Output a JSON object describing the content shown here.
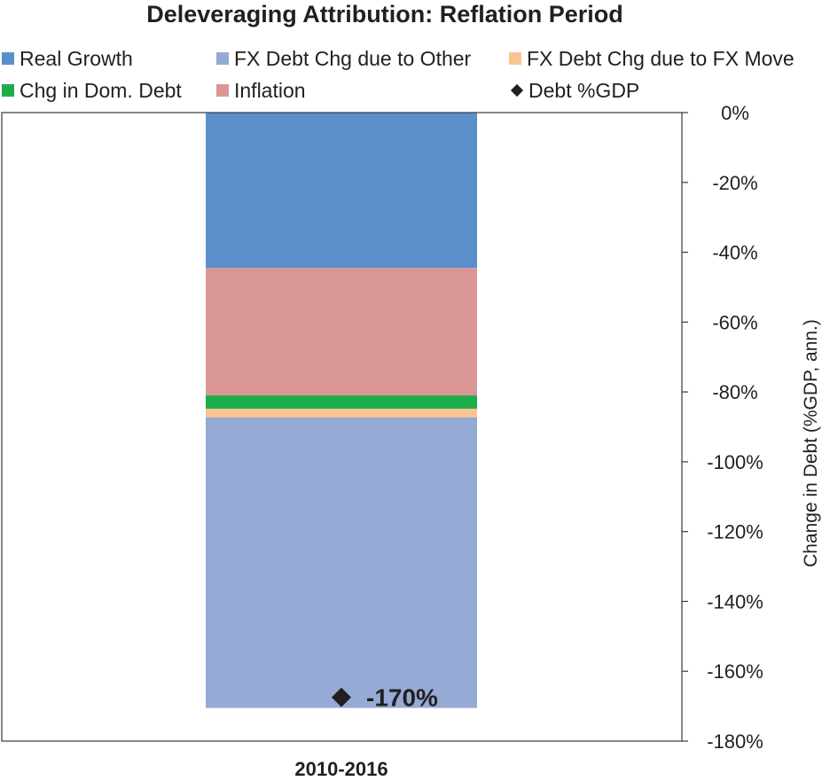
{
  "chart_data": {
    "type": "bar",
    "stacked": true,
    "title": "Deleveraging Attribution: Reflation Period",
    "ylabel": "Change in Debt (%GDP, ann.)",
    "categories": [
      "2010-2016"
    ],
    "ylim": [
      -180,
      0
    ],
    "yticks": [
      0,
      -20,
      -40,
      -60,
      -80,
      -100,
      -120,
      -140,
      -160,
      -180
    ],
    "ytick_labels": [
      "0%",
      "-20%",
      "-40%",
      "-60%",
      "-80%",
      "-100%",
      "-120%",
      "-140%",
      "-160%",
      "-180%"
    ],
    "y_axis_position": "right",
    "grid": false,
    "legend_position": "top",
    "series": [
      {
        "name": "Real Growth",
        "color": "#5a8fcb",
        "values": [
          -44.5
        ]
      },
      {
        "name": "Inflation",
        "color": "#d99695",
        "values": [
          -36.5
        ]
      },
      {
        "name": "Chg in Dom. Debt",
        "color": "#1fad4b",
        "values": [
          -3.8
        ]
      },
      {
        "name": "FX Debt Chg due to FX Move",
        "color": "#f9c48f",
        "values": [
          -2.5
        ]
      },
      {
        "name": "FX Debt Chg due to Other",
        "color": "#95aad4",
        "values": [
          -83.2
        ]
      }
    ],
    "markers": [
      {
        "name": "Debt %GDP",
        "values": [
          -170
        ],
        "label": "-170%"
      }
    ]
  },
  "legend": [
    {
      "label": "Real Growth",
      "color": "#5a8fcb",
      "shape": "square"
    },
    {
      "label": "FX Debt Chg due to Other",
      "color": "#95aad4",
      "shape": "square"
    },
    {
      "label": "FX Debt Chg due to FX Move",
      "color": "#f9c48f",
      "shape": "square"
    },
    {
      "label": "Chg in Dom. Debt",
      "color": "#1fad4b",
      "shape": "square"
    },
    {
      "label": "Inflation",
      "color": "#d99695",
      "shape": "square"
    },
    {
      "label": "Debt %GDP",
      "color": "#231f20",
      "shape": "diamond"
    }
  ]
}
